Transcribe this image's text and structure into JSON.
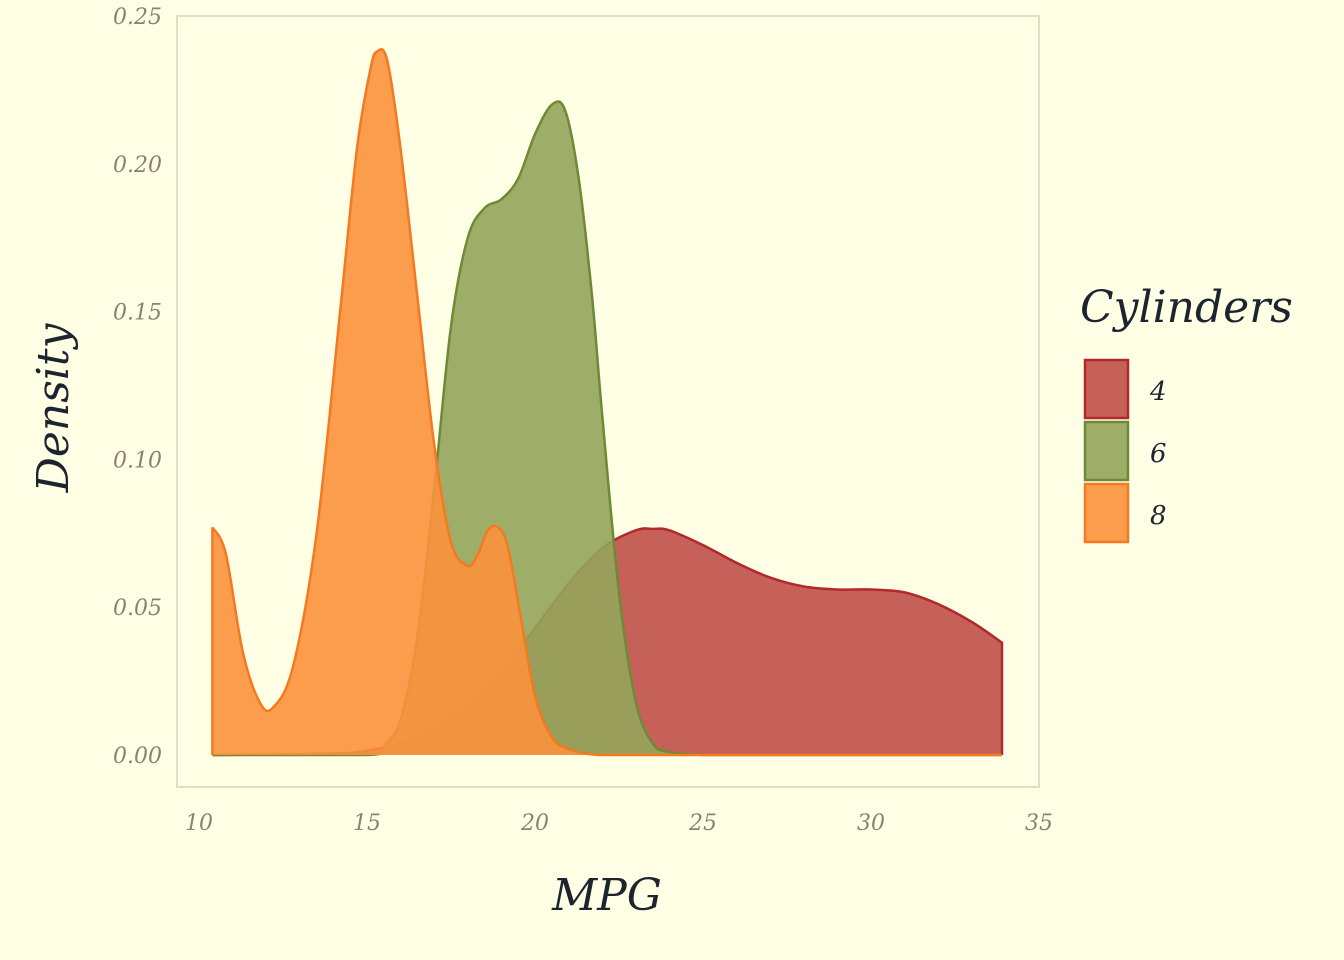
{
  "chart_data": {
    "type": "area",
    "subtype": "density",
    "xlabel": "MPG",
    "ylabel": "Density",
    "xlim": [
      10,
      35
    ],
    "ylim": [
      0,
      0.25
    ],
    "x_ticks": [
      "10",
      "15",
      "20",
      "25",
      "30",
      "35"
    ],
    "y_ticks": [
      "0.00",
      "0.05",
      "0.10",
      "0.15",
      "0.20",
      "0.25"
    ],
    "grid": false,
    "legend": {
      "title": "Cylinders",
      "position": "right"
    },
    "series": [
      {
        "name": "4",
        "fill": "#C0504A",
        "stroke": "#B2282B",
        "x": [
          10.4,
          14.0,
          15.0,
          16.0,
          17.0,
          18.0,
          19.0,
          20.0,
          21.0,
          22.0,
          23.0,
          23.5,
          24.0,
          25.0,
          26.0,
          27.0,
          28.0,
          29.0,
          30.0,
          31.0,
          32.0,
          33.0,
          33.9
        ],
        "y": [
          0.0,
          0.0005,
          0.0015,
          0.004,
          0.009,
          0.017,
          0.028,
          0.043,
          0.058,
          0.07,
          0.076,
          0.0765,
          0.076,
          0.071,
          0.065,
          0.06,
          0.057,
          0.056,
          0.056,
          0.055,
          0.051,
          0.045,
          0.038
        ]
      },
      {
        "name": "6",
        "fill": "#94A55A",
        "stroke": "#6E8A35",
        "x": [
          10.4,
          15.0,
          15.5,
          16.0,
          16.5,
          17.0,
          17.5,
          18.0,
          18.5,
          19.0,
          19.5,
          20.0,
          20.5,
          20.9,
          21.3,
          21.7,
          22.0,
          22.5,
          23.0,
          23.5,
          24.0,
          25.0,
          26.0,
          33.9
        ],
        "y": [
          0.0,
          0.0,
          0.003,
          0.012,
          0.04,
          0.09,
          0.145,
          0.175,
          0.185,
          0.188,
          0.195,
          0.21,
          0.22,
          0.218,
          0.195,
          0.155,
          0.115,
          0.055,
          0.018,
          0.004,
          0.001,
          0.0,
          0.0,
          0.0
        ]
      },
      {
        "name": "8",
        "fill": "#FB923C",
        "stroke": "#F47920",
        "x": [
          10.4,
          10.8,
          11.3,
          11.8,
          12.2,
          12.8,
          13.5,
          14.2,
          14.7,
          15.1,
          15.3,
          15.6,
          16.0,
          16.5,
          17.0,
          17.5,
          18.0,
          18.3,
          18.6,
          18.9,
          19.2,
          19.6,
          20.0,
          20.5,
          21.0,
          21.5,
          22.0,
          23.0,
          33.9
        ],
        "y": [
          0.077,
          0.068,
          0.035,
          0.018,
          0.016,
          0.03,
          0.075,
          0.15,
          0.205,
          0.232,
          0.238,
          0.235,
          0.205,
          0.155,
          0.105,
          0.072,
          0.064,
          0.068,
          0.076,
          0.077,
          0.07,
          0.045,
          0.02,
          0.006,
          0.002,
          0.0005,
          0.0,
          0.0,
          0.0
        ]
      }
    ]
  }
}
